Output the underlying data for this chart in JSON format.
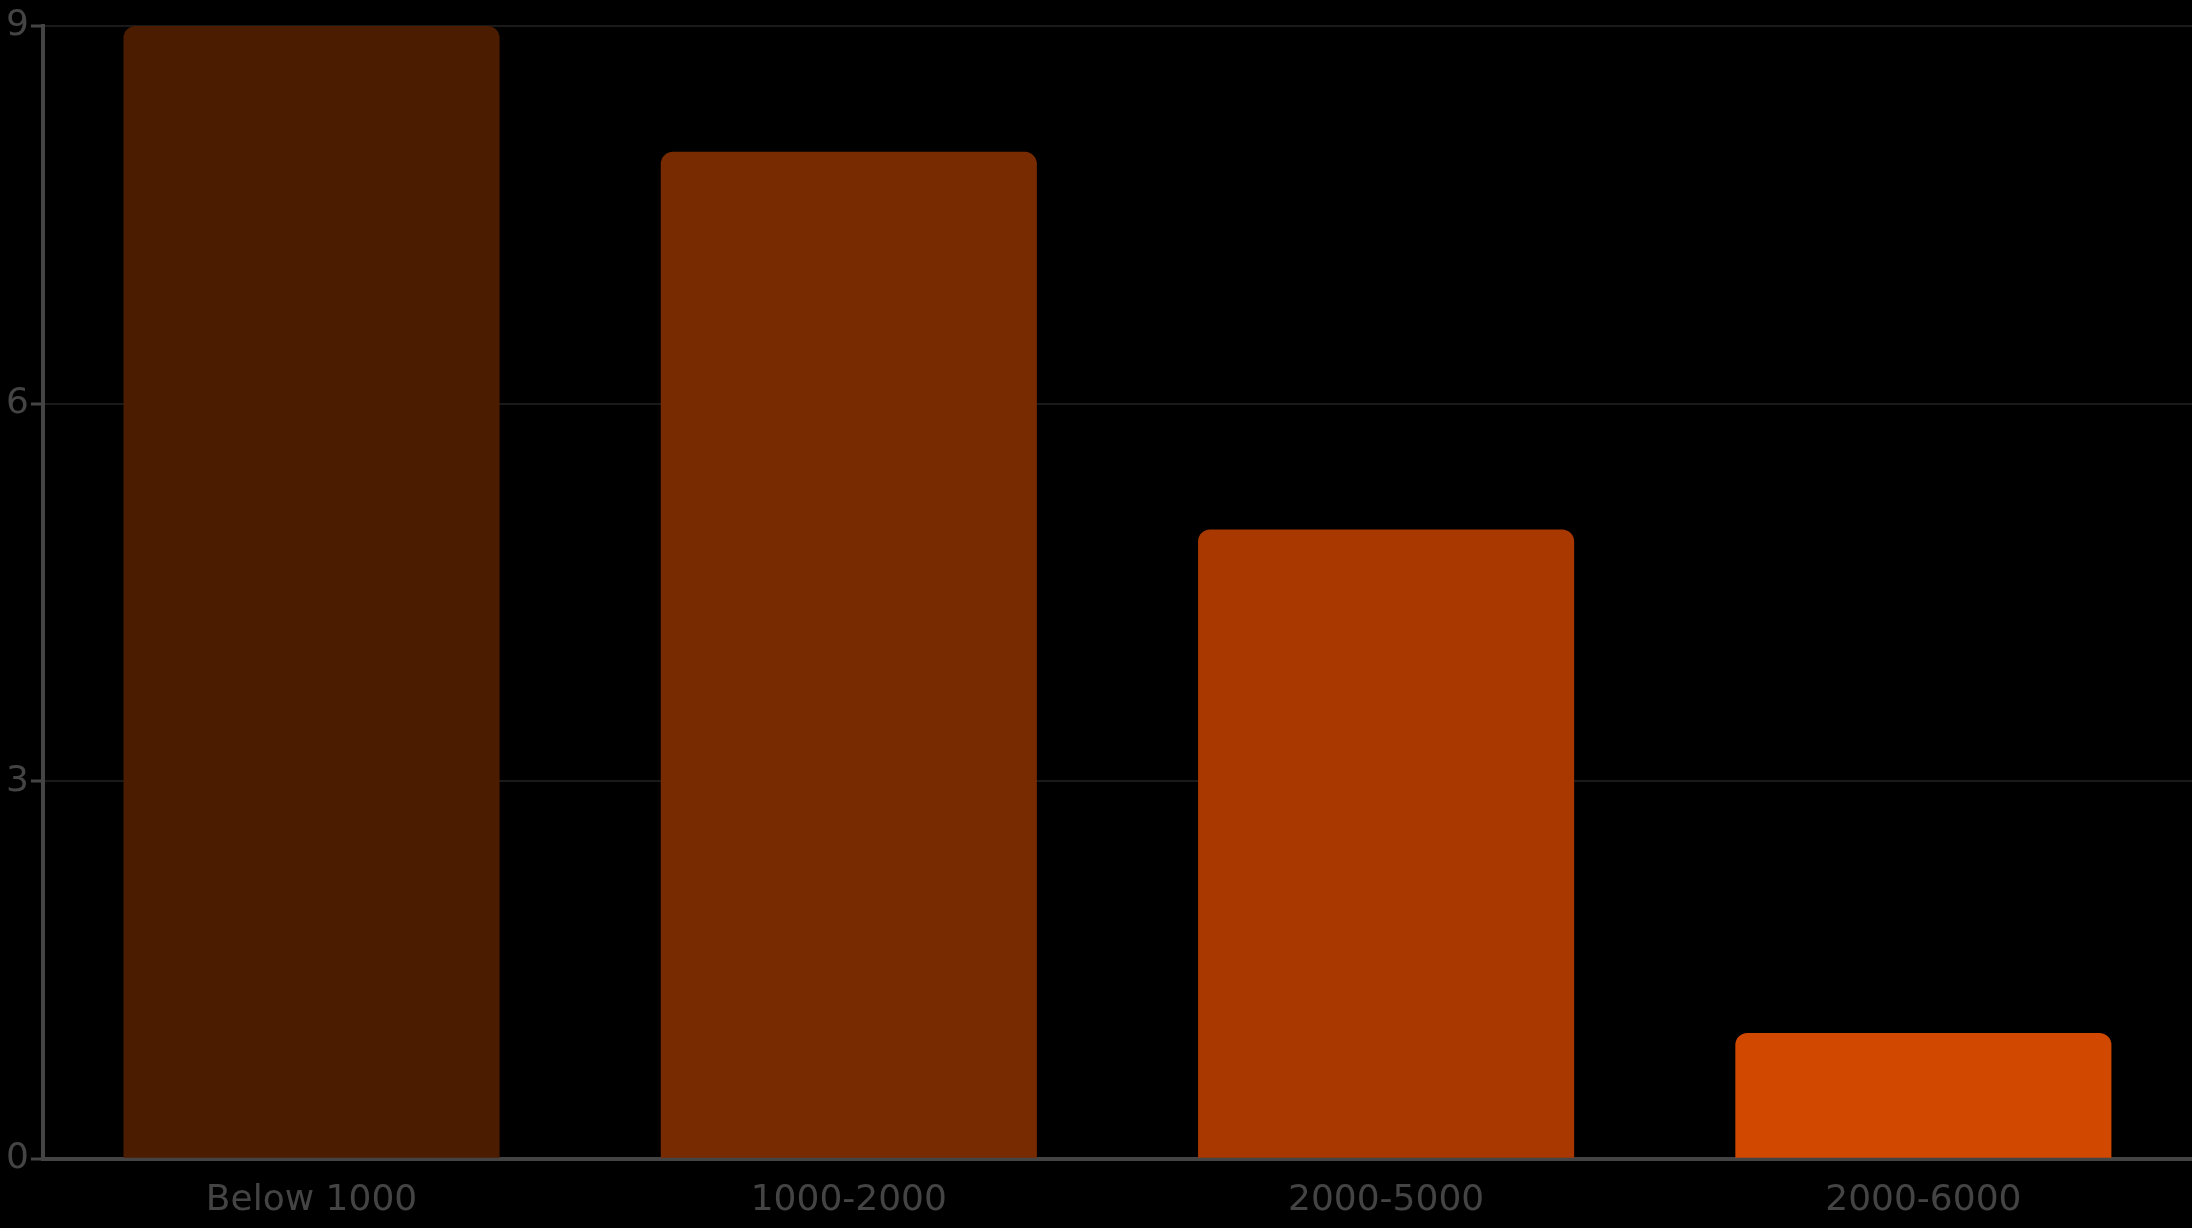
{
  "chart_data": {
    "type": "bar",
    "categories": [
      "Below 1000",
      "1000-2000",
      "2000-5000",
      "2000-6000"
    ],
    "values": [
      9,
      8,
      5,
      1
    ],
    "colors": [
      "#4b1c00",
      "#782b00",
      "#a83800",
      "#d14900"
    ],
    "ylim": [
      0,
      9
    ],
    "yticks": [
      0,
      3,
      6,
      9
    ],
    "grid": "y",
    "legend": false
  }
}
